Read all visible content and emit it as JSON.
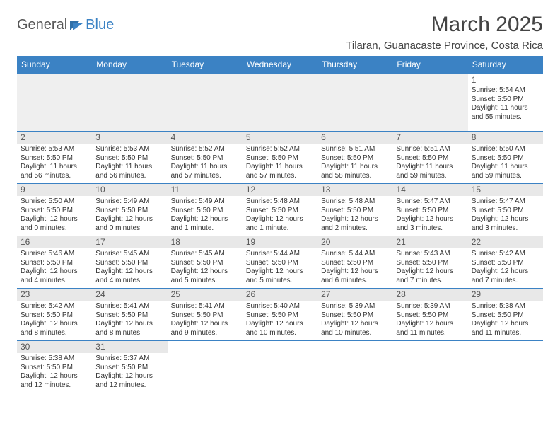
{
  "logo": {
    "text1": "General",
    "text2": "Blue"
  },
  "title": "March 2025",
  "location": "Tilaran, Guanacaste Province, Costa Rica",
  "day_headers": [
    "Sunday",
    "Monday",
    "Tuesday",
    "Wednesday",
    "Thursday",
    "Friday",
    "Saturday"
  ],
  "colors": {
    "header_bg": "#3b82c4",
    "header_text": "#ffffff",
    "border": "#3b82c4",
    "empty_bg": "#efefef",
    "daynum_band": "#e8e8e8",
    "body_text": "#333333"
  },
  "weeks": [
    [
      {
        "blank": true
      },
      {
        "blank": true
      },
      {
        "blank": true
      },
      {
        "blank": true
      },
      {
        "blank": true
      },
      {
        "blank": true
      },
      {
        "day": "1",
        "sunrise": "Sunrise: 5:54 AM",
        "sunset": "Sunset: 5:50 PM",
        "daylight": "Daylight: 11 hours and 55 minutes."
      }
    ],
    [
      {
        "day": "2",
        "sunrise": "Sunrise: 5:53 AM",
        "sunset": "Sunset: 5:50 PM",
        "daylight": "Daylight: 11 hours and 56 minutes."
      },
      {
        "day": "3",
        "sunrise": "Sunrise: 5:53 AM",
        "sunset": "Sunset: 5:50 PM",
        "daylight": "Daylight: 11 hours and 56 minutes."
      },
      {
        "day": "4",
        "sunrise": "Sunrise: 5:52 AM",
        "sunset": "Sunset: 5:50 PM",
        "daylight": "Daylight: 11 hours and 57 minutes."
      },
      {
        "day": "5",
        "sunrise": "Sunrise: 5:52 AM",
        "sunset": "Sunset: 5:50 PM",
        "daylight": "Daylight: 11 hours and 57 minutes."
      },
      {
        "day": "6",
        "sunrise": "Sunrise: 5:51 AM",
        "sunset": "Sunset: 5:50 PM",
        "daylight": "Daylight: 11 hours and 58 minutes."
      },
      {
        "day": "7",
        "sunrise": "Sunrise: 5:51 AM",
        "sunset": "Sunset: 5:50 PM",
        "daylight": "Daylight: 11 hours and 59 minutes."
      },
      {
        "day": "8",
        "sunrise": "Sunrise: 5:50 AM",
        "sunset": "Sunset: 5:50 PM",
        "daylight": "Daylight: 11 hours and 59 minutes."
      }
    ],
    [
      {
        "day": "9",
        "sunrise": "Sunrise: 5:50 AM",
        "sunset": "Sunset: 5:50 PM",
        "daylight": "Daylight: 12 hours and 0 minutes."
      },
      {
        "day": "10",
        "sunrise": "Sunrise: 5:49 AM",
        "sunset": "Sunset: 5:50 PM",
        "daylight": "Daylight: 12 hours and 0 minutes."
      },
      {
        "day": "11",
        "sunrise": "Sunrise: 5:49 AM",
        "sunset": "Sunset: 5:50 PM",
        "daylight": "Daylight: 12 hours and 1 minute."
      },
      {
        "day": "12",
        "sunrise": "Sunrise: 5:48 AM",
        "sunset": "Sunset: 5:50 PM",
        "daylight": "Daylight: 12 hours and 1 minute."
      },
      {
        "day": "13",
        "sunrise": "Sunrise: 5:48 AM",
        "sunset": "Sunset: 5:50 PM",
        "daylight": "Daylight: 12 hours and 2 minutes."
      },
      {
        "day": "14",
        "sunrise": "Sunrise: 5:47 AM",
        "sunset": "Sunset: 5:50 PM",
        "daylight": "Daylight: 12 hours and 3 minutes."
      },
      {
        "day": "15",
        "sunrise": "Sunrise: 5:47 AM",
        "sunset": "Sunset: 5:50 PM",
        "daylight": "Daylight: 12 hours and 3 minutes."
      }
    ],
    [
      {
        "day": "16",
        "sunrise": "Sunrise: 5:46 AM",
        "sunset": "Sunset: 5:50 PM",
        "daylight": "Daylight: 12 hours and 4 minutes."
      },
      {
        "day": "17",
        "sunrise": "Sunrise: 5:45 AM",
        "sunset": "Sunset: 5:50 PM",
        "daylight": "Daylight: 12 hours and 4 minutes."
      },
      {
        "day": "18",
        "sunrise": "Sunrise: 5:45 AM",
        "sunset": "Sunset: 5:50 PM",
        "daylight": "Daylight: 12 hours and 5 minutes."
      },
      {
        "day": "19",
        "sunrise": "Sunrise: 5:44 AM",
        "sunset": "Sunset: 5:50 PM",
        "daylight": "Daylight: 12 hours and 5 minutes."
      },
      {
        "day": "20",
        "sunrise": "Sunrise: 5:44 AM",
        "sunset": "Sunset: 5:50 PM",
        "daylight": "Daylight: 12 hours and 6 minutes."
      },
      {
        "day": "21",
        "sunrise": "Sunrise: 5:43 AM",
        "sunset": "Sunset: 5:50 PM",
        "daylight": "Daylight: 12 hours and 7 minutes."
      },
      {
        "day": "22",
        "sunrise": "Sunrise: 5:42 AM",
        "sunset": "Sunset: 5:50 PM",
        "daylight": "Daylight: 12 hours and 7 minutes."
      }
    ],
    [
      {
        "day": "23",
        "sunrise": "Sunrise: 5:42 AM",
        "sunset": "Sunset: 5:50 PM",
        "daylight": "Daylight: 12 hours and 8 minutes."
      },
      {
        "day": "24",
        "sunrise": "Sunrise: 5:41 AM",
        "sunset": "Sunset: 5:50 PM",
        "daylight": "Daylight: 12 hours and 8 minutes."
      },
      {
        "day": "25",
        "sunrise": "Sunrise: 5:41 AM",
        "sunset": "Sunset: 5:50 PM",
        "daylight": "Daylight: 12 hours and 9 minutes."
      },
      {
        "day": "26",
        "sunrise": "Sunrise: 5:40 AM",
        "sunset": "Sunset: 5:50 PM",
        "daylight": "Daylight: 12 hours and 10 minutes."
      },
      {
        "day": "27",
        "sunrise": "Sunrise: 5:39 AM",
        "sunset": "Sunset: 5:50 PM",
        "daylight": "Daylight: 12 hours and 10 minutes."
      },
      {
        "day": "28",
        "sunrise": "Sunrise: 5:39 AM",
        "sunset": "Sunset: 5:50 PM",
        "daylight": "Daylight: 12 hours and 11 minutes."
      },
      {
        "day": "29",
        "sunrise": "Sunrise: 5:38 AM",
        "sunset": "Sunset: 5:50 PM",
        "daylight": "Daylight: 12 hours and 11 minutes."
      }
    ],
    [
      {
        "day": "30",
        "sunrise": "Sunrise: 5:38 AM",
        "sunset": "Sunset: 5:50 PM",
        "daylight": "Daylight: 12 hours and 12 minutes."
      },
      {
        "day": "31",
        "sunrise": "Sunrise: 5:37 AM",
        "sunset": "Sunset: 5:50 PM",
        "daylight": "Daylight: 12 hours and 12 minutes."
      },
      {
        "blank": true,
        "noborder": true
      },
      {
        "blank": true,
        "noborder": true
      },
      {
        "blank": true,
        "noborder": true
      },
      {
        "blank": true,
        "noborder": true
      },
      {
        "blank": true,
        "noborder": true
      }
    ]
  ]
}
